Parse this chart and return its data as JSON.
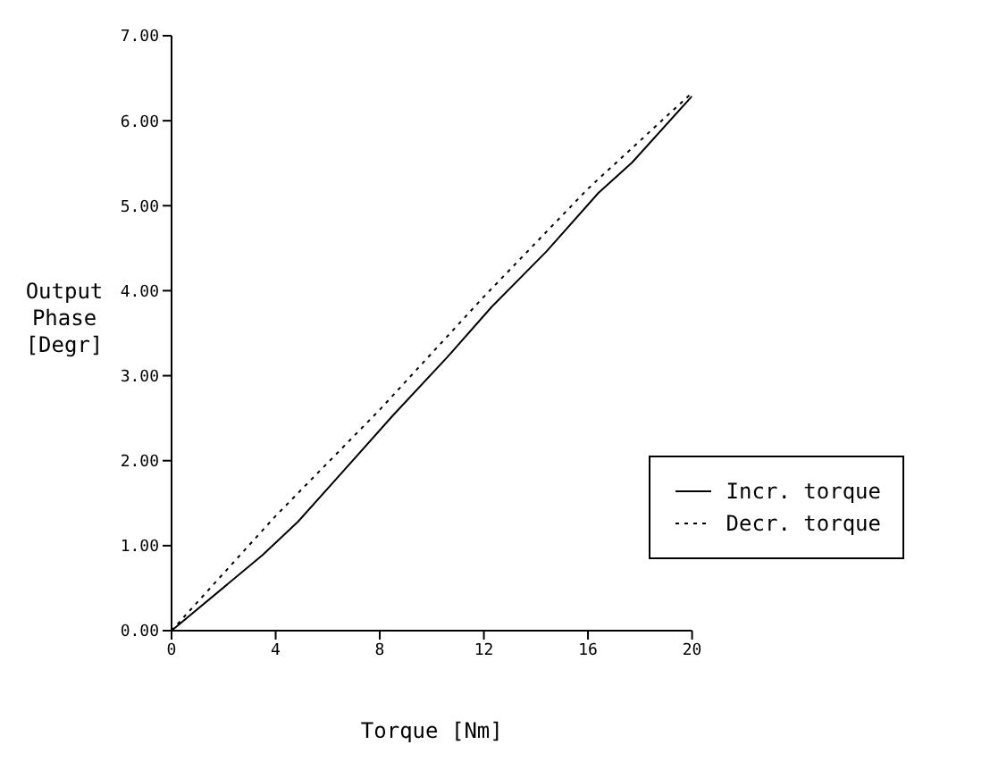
{
  "chart_data": {
    "type": "line",
    "xlabel": "Torque [Nm]",
    "ylabel": "Output\nPhase\n[Degr]",
    "xlim": [
      0,
      20
    ],
    "xticks": [
      0,
      4,
      8,
      12,
      16,
      20
    ],
    "ylim": [
      0,
      7
    ],
    "yticks": [
      {
        "value": 0,
        "label": "0.00"
      },
      {
        "value": 1,
        "label": "1.00"
      },
      {
        "value": 2,
        "label": "2.00"
      },
      {
        "value": 3,
        "label": "3.00"
      },
      {
        "value": 4,
        "label": "4.00"
      },
      {
        "value": 5,
        "label": "5.00"
      },
      {
        "value": 6,
        "label": "6.00"
      },
      {
        "value": 7,
        "label": "7.00"
      }
    ],
    "legend": "bottom right",
    "marker": "none",
    "series": [
      {
        "name": "Incr. torque",
        "color": "#000000",
        "line_style": "solid",
        "x": [
          0,
          3.5,
          4.85,
          6.2,
          8.5,
          10.6,
          12.3,
          14.4,
          16.4,
          17.7,
          20
        ],
        "values": [
          0,
          0.89,
          1.28,
          1.74,
          2.53,
          3.22,
          3.81,
          4.46,
          5.15,
          5.51,
          6.29
        ]
      },
      {
        "name": "Decr. torque",
        "color": "#000000",
        "line_style": "dotted",
        "x": [
          0,
          4,
          8,
          12,
          16,
          20
        ],
        "values": [
          0,
          1.35,
          2.6,
          3.93,
          5.2,
          6.33
        ]
      }
    ]
  }
}
